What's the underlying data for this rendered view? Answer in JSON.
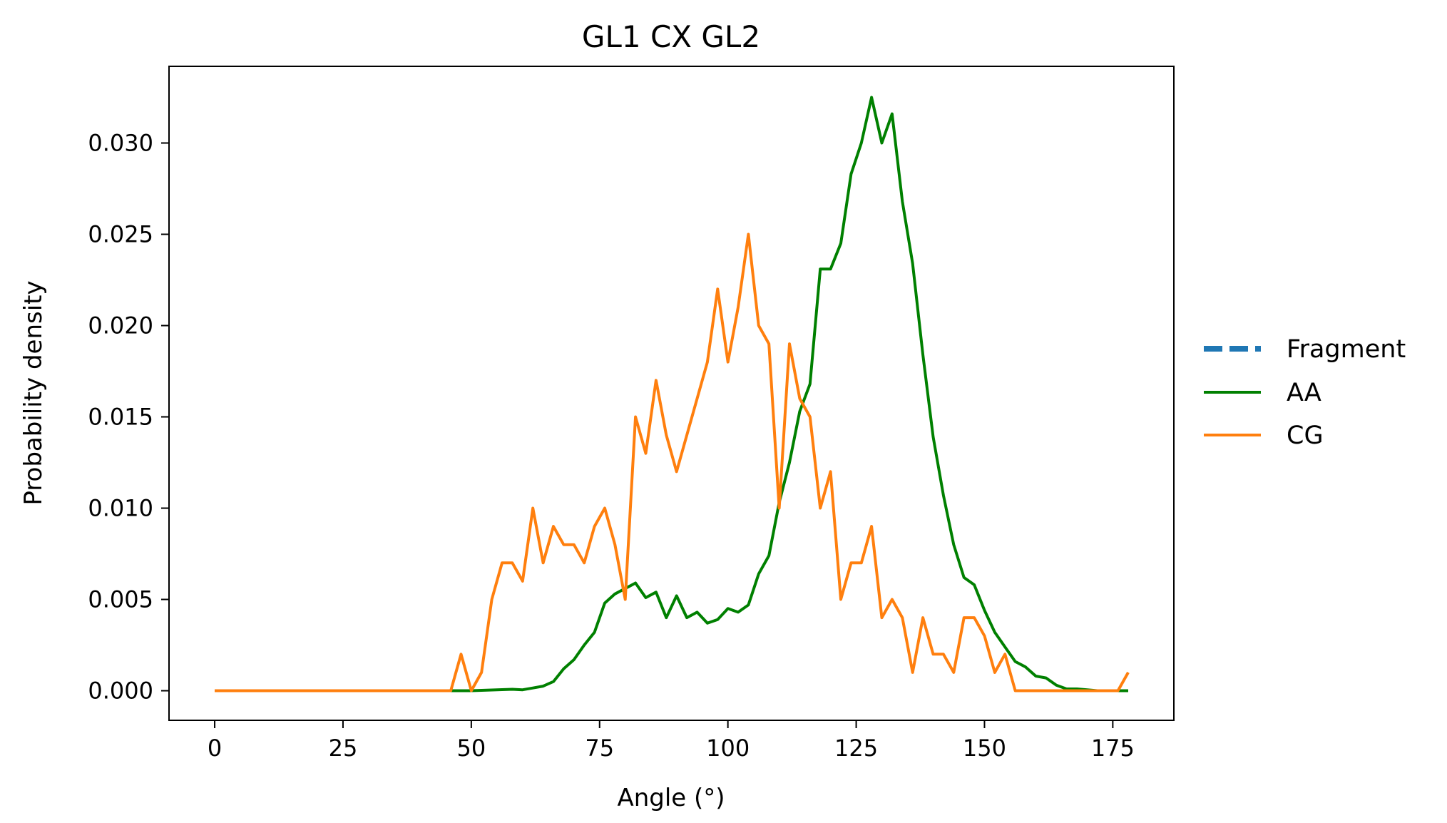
{
  "chart_data": {
    "type": "line",
    "title": "GL1 CX GL2",
    "xlabel": "Angle (°)",
    "ylabel": "Probability density",
    "xlim": [
      -8.9,
      186.9
    ],
    "ylim": [
      -0.00162,
      0.0342
    ],
    "x_ticks": [
      0,
      25,
      50,
      75,
      100,
      125,
      150,
      175
    ],
    "x_tick_labels": [
      "0",
      "25",
      "50",
      "75",
      "100",
      "125",
      "150",
      "175"
    ],
    "y_ticks": [
      0.0,
      0.005,
      0.01,
      0.015,
      0.02,
      0.025,
      0.03
    ],
    "y_tick_labels": [
      "0.000",
      "0.005",
      "0.010",
      "0.015",
      "0.020",
      "0.025",
      "0.030"
    ],
    "grid": false,
    "legend_position": "right, outside plot",
    "legend": [
      "Fragment",
      "AA",
      "CG"
    ],
    "series": [
      {
        "name": "Fragment",
        "color": "#1f77b4",
        "style": "dashed",
        "x": [],
        "y": []
      },
      {
        "name": "AA",
        "color": "#008000",
        "style": "solid",
        "x": [
          0,
          2,
          4,
          6,
          8,
          10,
          12,
          14,
          16,
          18,
          20,
          22,
          24,
          26,
          28,
          30,
          32,
          34,
          36,
          38,
          40,
          42,
          44,
          46,
          48,
          50,
          52,
          54,
          56,
          58,
          60,
          62,
          64,
          66,
          68,
          70,
          72,
          74,
          76,
          78,
          80,
          82,
          84,
          86,
          88,
          90,
          92,
          94,
          96,
          98,
          100,
          102,
          104,
          106,
          108,
          110,
          112,
          114,
          116,
          118,
          120,
          122,
          124,
          126,
          128,
          130,
          132,
          134,
          136,
          138,
          140,
          142,
          144,
          146,
          148,
          150,
          152,
          154,
          156,
          158,
          160,
          162,
          164,
          166,
          168,
          170,
          172,
          174,
          176,
          178
        ],
        "y": [
          0,
          0,
          0,
          0,
          0,
          0,
          0,
          0,
          0,
          0,
          0,
          0,
          0,
          0,
          0,
          0,
          0,
          0,
          0,
          0,
          0,
          0,
          0,
          0,
          0,
          0,
          2e-05,
          4e-05,
          6e-05,
          8e-05,
          5e-05,
          0.00015,
          0.00025,
          0.0005,
          0.0012,
          0.0017,
          0.0025,
          0.0032,
          0.0048,
          0.0053,
          0.0056,
          0.0059,
          0.0051,
          0.0054,
          0.004,
          0.0052,
          0.004,
          0.0043,
          0.0037,
          0.0039,
          0.0045,
          0.0043,
          0.0047,
          0.0064,
          0.0074,
          0.0103,
          0.0125,
          0.0153,
          0.0168,
          0.0231,
          0.0231,
          0.0245,
          0.0283,
          0.03,
          0.0325,
          0.03,
          0.0316,
          0.0268,
          0.0234,
          0.0184,
          0.0139,
          0.0107,
          0.008,
          0.0062,
          0.0058,
          0.0044,
          0.0032,
          0.0024,
          0.0016,
          0.0013,
          0.0008,
          0.0007,
          0.0003,
          0.0001,
          0.0001,
          5e-05,
          0,
          0,
          0,
          0
        ]
      },
      {
        "name": "CG",
        "color": "#ff7f0e",
        "style": "solid",
        "x": [
          0,
          2,
          4,
          6,
          8,
          10,
          12,
          14,
          16,
          18,
          20,
          22,
          24,
          26,
          28,
          30,
          32,
          34,
          36,
          38,
          40,
          42,
          44,
          46,
          48,
          50,
          52,
          54,
          56,
          58,
          60,
          62,
          64,
          66,
          68,
          70,
          72,
          74,
          76,
          78,
          80,
          82,
          84,
          86,
          88,
          90,
          92,
          94,
          96,
          98,
          100,
          102,
          104,
          106,
          108,
          110,
          112,
          114,
          116,
          118,
          120,
          122,
          124,
          126,
          128,
          130,
          132,
          134,
          136,
          138,
          140,
          142,
          144,
          146,
          148,
          150,
          152,
          154,
          156,
          158,
          160,
          162,
          164,
          166,
          168,
          170,
          172,
          174,
          176,
          178
        ],
        "y": [
          0,
          0,
          0,
          0,
          0,
          0,
          0,
          0,
          0,
          0,
          0,
          0,
          0,
          0,
          0,
          0,
          0,
          0,
          0,
          0,
          0,
          0,
          0,
          0,
          0.002,
          0,
          0.001,
          0.005,
          0.007,
          0.007,
          0.006,
          0.01,
          0.007,
          0.009,
          0.008,
          0.008,
          0.007,
          0.009,
          0.01,
          0.008,
          0.005,
          0.015,
          0.013,
          0.017,
          0.014,
          0.012,
          0.014,
          0.016,
          0.018,
          0.022,
          0.018,
          0.021,
          0.025,
          0.02,
          0.019,
          0.01,
          0.019,
          0.016,
          0.015,
          0.01,
          0.012,
          0.005,
          0.007,
          0.007,
          0.009,
          0.004,
          0.005,
          0.004,
          0.001,
          0.004,
          0.002,
          0.002,
          0.001,
          0.004,
          0.004,
          0.003,
          0.001,
          0.002,
          0,
          0,
          0,
          0,
          0,
          0,
          0,
          0,
          0,
          0,
          0,
          0.001
        ]
      }
    ]
  }
}
